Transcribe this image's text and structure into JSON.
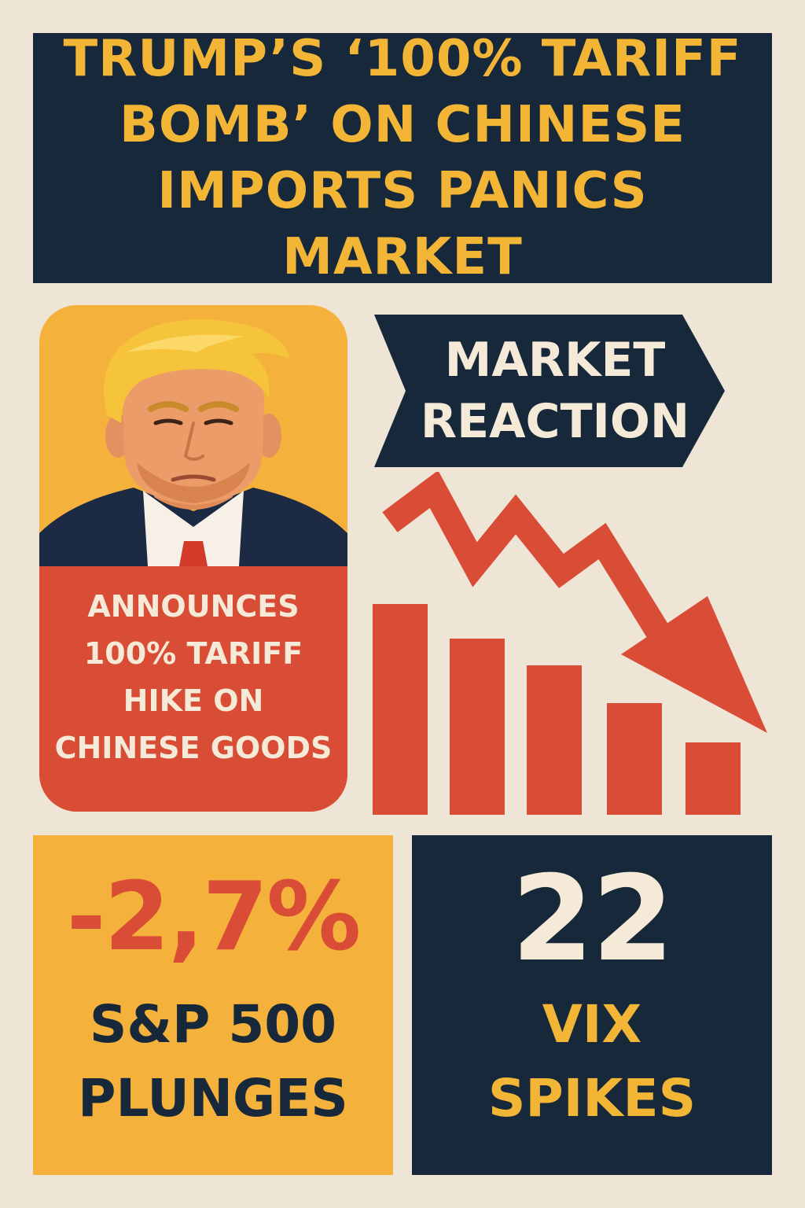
{
  "headline": {
    "line1": "TRUMP’S ‘100% TARIFF",
    "line2": "BOMB’ ON CHINESE",
    "line3": "IMPORTS PANICS MARKET"
  },
  "announcement": {
    "line1": "ANNOUNCES",
    "line2": "100% TARIFF",
    "line3": "HIKE ON",
    "line4": "CHINESE GOODS"
  },
  "reaction": {
    "line1": "MARKET",
    "line2": "REACTION"
  },
  "sp500": {
    "value": "-2,7%",
    "label_line1": "S&P 500",
    "label_line2": "PLUNGES"
  },
  "vix": {
    "value": "22",
    "label_line1": "VIX",
    "label_line2": "SPIKES"
  },
  "icons": {
    "portrait": "trump-portrait-illustration",
    "chart": "falling-bar-chart-with-down-arrow"
  },
  "colors": {
    "background": "#efe5d6",
    "navy": "#16283a",
    "gold": "#f3b535",
    "orange": "#f4b13b",
    "red": "#d94c36",
    "cream": "#f5ead8"
  }
}
